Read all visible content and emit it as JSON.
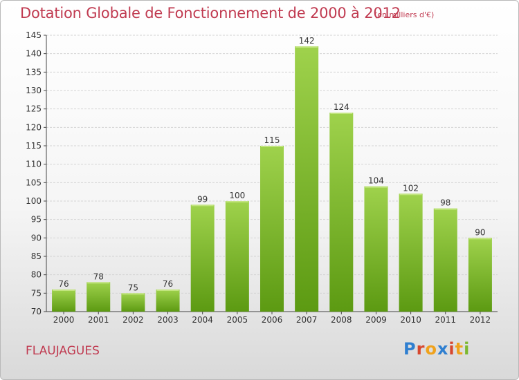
{
  "header": {
    "title": "Dotation Globale de Fonctionnement de 2000 à 2012",
    "subtitle": "(en milliers d'€)"
  },
  "footer": {
    "city": "FLAUJAGUES",
    "logo": [
      "P",
      "r",
      "o",
      "x",
      "i",
      "t",
      "i"
    ]
  },
  "colors": {
    "title": "#c03a50",
    "bar_top": "#9fd24c",
    "bar_bottom": "#5c9a12",
    "logo": [
      "#2f7fd0",
      "#d7472e",
      "#f0a21c",
      "#2f7fd0",
      "#d7472e",
      "#f0a21c",
      "#7cb82f"
    ]
  },
  "chart_data": {
    "type": "bar",
    "title": "Dotation Globale de Fonctionnement de 2000 à 2012",
    "subtitle": "(en milliers d'€)",
    "categories": [
      "2000",
      "2001",
      "2002",
      "2003",
      "2004",
      "2005",
      "2006",
      "2007",
      "2008",
      "2009",
      "2010",
      "2011",
      "2012"
    ],
    "values": [
      76,
      78,
      75,
      76,
      99,
      100,
      115,
      142,
      124,
      104,
      102,
      98,
      90
    ],
    "value_labels": [
      "76",
      "78",
      "75",
      "76",
      "99",
      "100",
      "115",
      "142",
      "124",
      "104",
      "102",
      "98",
      "90"
    ],
    "ylim": [
      70,
      145
    ],
    "yticks": [
      70,
      75,
      80,
      85,
      90,
      95,
      100,
      105,
      110,
      115,
      120,
      125,
      130,
      135,
      140,
      145
    ],
    "grid": true,
    "legend": "none"
  }
}
